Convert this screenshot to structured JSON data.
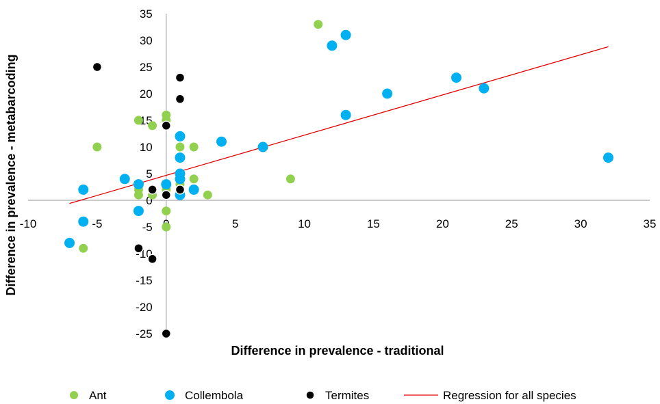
{
  "chart_data": {
    "type": "scatter",
    "title": "",
    "xlabel": "Difference in prevalence - traditional",
    "ylabel": "Difference in prevalence - metabarcoding",
    "xlim": [
      -10,
      35
    ],
    "ylim": [
      -25,
      35
    ],
    "x_ticks": [
      "-10",
      "-5",
      "0",
      "5",
      "10",
      "15",
      "20",
      "25",
      "30",
      "35"
    ],
    "y_ticks": [
      "-25",
      "-20",
      "-15",
      "-10",
      "-5",
      "0",
      "5",
      "10",
      "15",
      "20",
      "25",
      "30",
      "35"
    ],
    "grid": false,
    "legend_position": "bottom",
    "series": [
      {
        "name": "Ant",
        "color": "#92d050",
        "points": [
          [
            11,
            33
          ],
          [
            -5,
            10
          ],
          [
            -6,
            -9
          ],
          [
            0,
            16
          ],
          [
            0,
            15
          ],
          [
            -2,
            15
          ],
          [
            -1,
            14
          ],
          [
            1,
            10
          ],
          [
            2,
            10
          ],
          [
            2,
            4
          ],
          [
            3,
            1
          ],
          [
            1,
            3
          ],
          [
            9,
            4
          ],
          [
            0,
            2
          ],
          [
            -2,
            1
          ],
          [
            -1,
            1
          ],
          [
            0,
            -2
          ],
          [
            0,
            -5
          ],
          [
            -2,
            2
          ]
        ]
      },
      {
        "name": "Collembola",
        "color": "#00b0f0",
        "points": [
          [
            13,
            31
          ],
          [
            12,
            29
          ],
          [
            21,
            23
          ],
          [
            23,
            21
          ],
          [
            16,
            20
          ],
          [
            13,
            16
          ],
          [
            32,
            8
          ],
          [
            4,
            11
          ],
          [
            7,
            10
          ],
          [
            1,
            12
          ],
          [
            1,
            8
          ],
          [
            1,
            5
          ],
          [
            1,
            4
          ],
          [
            1,
            1
          ],
          [
            2,
            2
          ],
          [
            -3,
            4
          ],
          [
            -2,
            3
          ],
          [
            0,
            3
          ],
          [
            -6,
            2
          ],
          [
            -6,
            -4
          ],
          [
            -2,
            -2
          ],
          [
            -7,
            -8
          ]
        ]
      },
      {
        "name": "Termites",
        "color": "#000000",
        "points": [
          [
            -5,
            25
          ],
          [
            1,
            23
          ],
          [
            1,
            19
          ],
          [
            0,
            14
          ],
          [
            -1,
            2
          ],
          [
            1,
            2
          ],
          [
            0,
            1
          ],
          [
            -2,
            -9
          ],
          [
            -1,
            -11
          ],
          [
            0,
            -25
          ]
        ]
      },
      {
        "name": "Regression for all species",
        "type": "line",
        "color": "#e00000",
        "points": [
          [
            -7,
            -0.6
          ],
          [
            32,
            28.8
          ]
        ]
      }
    ]
  }
}
